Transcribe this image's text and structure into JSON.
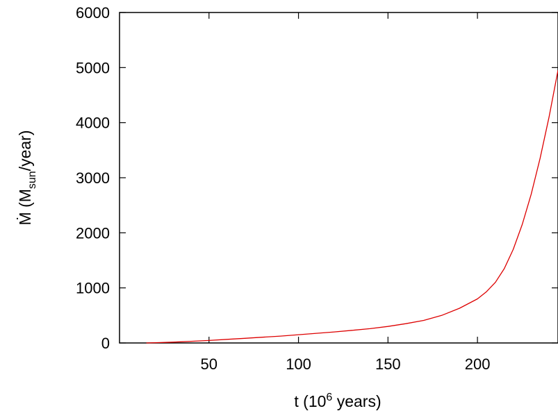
{
  "chart_data": {
    "type": "line",
    "title": "",
    "xlabel": {
      "prefix": "t (10",
      "sup": "6",
      "suffix": " years)"
    },
    "ylabel": {
      "prefix": "Ṁ (M",
      "sub": "sun",
      "suffix": "/year)"
    },
    "xlim": [
      0,
      245
    ],
    "ylim": [
      0,
      6000
    ],
    "xticks": [
      50,
      100,
      150,
      200
    ],
    "yticks": [
      0,
      1000,
      2000,
      3000,
      4000,
      5000,
      6000
    ],
    "grid": false,
    "series": [
      {
        "color": "#dd0000",
        "x": [
          15,
          20,
          30,
          40,
          50,
          60,
          70,
          80,
          90,
          100,
          110,
          120,
          130,
          140,
          150,
          160,
          170,
          180,
          190,
          200,
          205,
          210,
          215,
          220,
          225,
          230,
          235,
          240,
          245
        ],
        "y": [
          0,
          5,
          15,
          30,
          45,
          65,
          85,
          105,
          125,
          150,
          175,
          200,
          230,
          260,
          300,
          350,
          410,
          500,
          630,
          800,
          930,
          1100,
          1350,
          1700,
          2150,
          2700,
          3350,
          4100,
          4950
        ]
      }
    ]
  }
}
